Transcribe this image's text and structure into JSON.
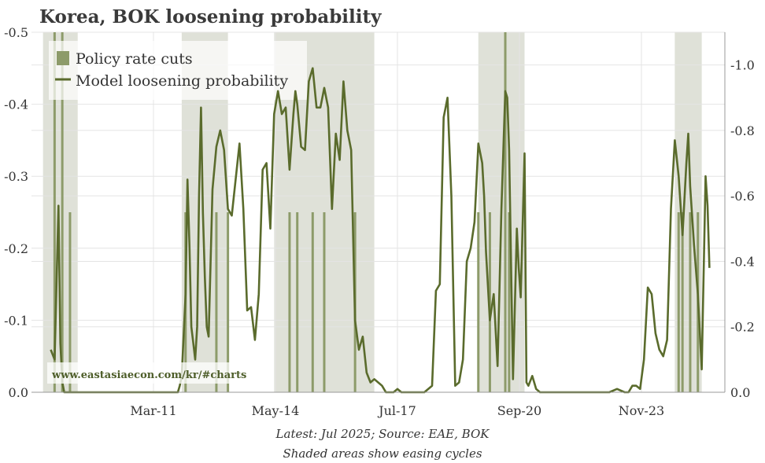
{
  "chart_data": {
    "type": "line",
    "title": "Korea, BOK loosening probability",
    "legend": {
      "placement": "top-left",
      "shaded_label": "Policy rate cuts",
      "line_label": "Model loosening probability"
    },
    "left_axis": {
      "ylim": [
        0.0,
        -0.5
      ],
      "ticks": [
        "0.0",
        "-0.1",
        "-0.2",
        "-0.3",
        "-0.4",
        "-0.5"
      ]
    },
    "right_axis": {
      "ylim": [
        0.0,
        -1.1
      ],
      "ticks": [
        "0.0",
        "-0.2",
        "-0.4",
        "-0.6",
        "-0.8",
        "-1.0"
      ]
    },
    "x_ticks": [
      "Mar-11",
      "May-14",
      "Jul-17",
      "Sep-20",
      "Nov-23"
    ],
    "xlim": [
      2008.0,
      2026.0
    ],
    "grid": true,
    "easing_cycles": [
      [
        2008.3,
        2009.2
      ],
      [
        2011.9,
        2013.1
      ],
      [
        2014.3,
        2016.9
      ],
      [
        2019.6,
        2020.8
      ],
      [
        2024.7,
        2025.4
      ]
    ],
    "policy_rate_cuts": [
      {
        "x": 2008.6,
        "value": -0.5
      },
      {
        "x": 2008.8,
        "value": -0.5
      },
      {
        "x": 2009.0,
        "value": -0.25
      },
      {
        "x": 2012.0,
        "value": -0.25
      },
      {
        "x": 2012.8,
        "value": -0.25
      },
      {
        "x": 2013.1,
        "value": -0.25
      },
      {
        "x": 2014.7,
        "value": -0.25
      },
      {
        "x": 2014.9,
        "value": -0.25
      },
      {
        "x": 2015.3,
        "value": -0.25
      },
      {
        "x": 2015.6,
        "value": -0.25
      },
      {
        "x": 2016.4,
        "value": -0.25
      },
      {
        "x": 2019.6,
        "value": -0.25
      },
      {
        "x": 2019.9,
        "value": -0.25
      },
      {
        "x": 2020.3,
        "value": -0.5
      },
      {
        "x": 2020.4,
        "value": -0.25
      },
      {
        "x": 2024.8,
        "value": -0.25
      },
      {
        "x": 2024.9,
        "value": -0.25
      },
      {
        "x": 2025.1,
        "value": -0.25
      },
      {
        "x": 2025.3,
        "value": -0.25
      }
    ],
    "series": [
      {
        "axis": "right",
        "x": [
          2008.5,
          2008.6,
          2008.7,
          2008.75,
          2008.8,
          2008.85,
          2008.9,
          2009.0,
          2009.1,
          2009.2,
          2009.3,
          2009.5,
          2010.0,
          2011.0,
          2011.5,
          2011.8,
          2011.85,
          2011.9,
          2012.0,
          2012.05,
          2012.1,
          2012.15,
          2012.2,
          2012.25,
          2012.3,
          2012.35,
          2012.4,
          2012.45,
          2012.5,
          2012.55,
          2012.6,
          2012.7,
          2012.8,
          2012.9,
          2013.0,
          2013.1,
          2013.2,
          2013.3,
          2013.4,
          2013.5,
          2013.6,
          2013.7,
          2013.8,
          2013.9,
          2014.0,
          2014.1,
          2014.2,
          2014.3,
          2014.4,
          2014.5,
          2014.6,
          2014.7,
          2014.8,
          2014.85,
          2014.9,
          2015.0,
          2015.1,
          2015.2,
          2015.3,
          2015.4,
          2015.5,
          2015.6,
          2015.7,
          2015.8,
          2015.9,
          2016.0,
          2016.1,
          2016.2,
          2016.3,
          2016.4,
          2016.5,
          2016.6,
          2016.7,
          2016.8,
          2016.9,
          2017.0,
          2017.1,
          2017.2,
          2017.3,
          2017.4,
          2017.5,
          2017.6,
          2017.8,
          2018.0,
          2018.2,
          2018.4,
          2018.5,
          2018.6,
          2018.7,
          2018.75,
          2018.8,
          2018.9,
          2019.0,
          2019.1,
          2019.2,
          2019.3,
          2019.4,
          2019.5,
          2019.6,
          2019.7,
          2019.75,
          2019.8,
          2019.9,
          2020.0,
          2020.1,
          2020.2,
          2020.3,
          2020.35,
          2020.4,
          2020.5,
          2020.6,
          2020.65,
          2020.7,
          2020.8,
          2020.85,
          2020.9,
          2021.0,
          2021.1,
          2021.2,
          2021.5,
          2022.0,
          2022.5,
          2023.0,
          2023.2,
          2023.4,
          2023.5,
          2023.6,
          2023.7,
          2023.8,
          2023.9,
          2024.0,
          2024.1,
          2024.2,
          2024.3,
          2024.4,
          2024.5,
          2024.6,
          2024.7,
          2024.8,
          2024.9,
          2025.0,
          2025.05,
          2025.1,
          2025.2,
          2025.3,
          2025.4,
          2025.5,
          2025.55,
          2025.6
        ],
        "y": [
          -0.13,
          -0.1,
          -0.57,
          -0.15,
          -0.03,
          0.0,
          0.0,
          0.0,
          0.0,
          0.0,
          0.0,
          0.0,
          0.0,
          0.0,
          0.0,
          0.0,
          -0.02,
          -0.05,
          -0.3,
          -0.65,
          -0.45,
          -0.2,
          -0.15,
          -0.1,
          -0.2,
          -0.6,
          -0.87,
          -0.55,
          -0.35,
          -0.2,
          -0.17,
          -0.62,
          -0.75,
          -0.8,
          -0.74,
          -0.56,
          -0.54,
          -0.65,
          -0.76,
          -0.56,
          -0.25,
          -0.26,
          -0.16,
          -0.3,
          -0.68,
          -0.7,
          -0.5,
          -0.85,
          -0.92,
          -0.85,
          -0.87,
          -0.68,
          -0.85,
          -0.92,
          -0.88,
          -0.75,
          -0.74,
          -0.95,
          -0.99,
          -0.87,
          -0.87,
          -0.93,
          -0.87,
          -0.56,
          -0.79,
          -0.71,
          -0.95,
          -0.8,
          -0.74,
          -0.22,
          -0.13,
          -0.17,
          -0.06,
          -0.03,
          -0.04,
          -0.03,
          -0.02,
          0.0,
          0.0,
          0.0,
          -0.01,
          0.0,
          0.0,
          0.0,
          0.0,
          -0.02,
          -0.31,
          -0.33,
          -0.84,
          -0.87,
          -0.9,
          -0.6,
          -0.02,
          -0.03,
          -0.1,
          -0.4,
          -0.44,
          -0.52,
          -0.76,
          -0.7,
          -0.6,
          -0.43,
          -0.22,
          -0.3,
          -0.08,
          -0.56,
          -0.92,
          -0.9,
          -0.74,
          -0.04,
          -0.5,
          -0.38,
          -0.29,
          -0.73,
          -0.03,
          -0.02,
          -0.05,
          -0.01,
          0.0,
          0.0,
          0.0,
          0.0,
          0.0,
          -0.01,
          0.0,
          0.0,
          -0.02,
          -0.02,
          -0.01,
          -0.1,
          -0.32,
          -0.3,
          -0.18,
          -0.13,
          -0.11,
          -0.16,
          -0.56,
          -0.77,
          -0.66,
          -0.48,
          -0.7,
          -0.79,
          -0.63,
          -0.45,
          -0.3,
          -0.07,
          -0.66,
          -0.57,
          -0.38
        ]
      }
    ],
    "watermark": "www.eastasiaecon.com/kr/#charts",
    "notes": [
      "Latest: Jul 2025; Source: EAE, BOK",
      "Shaded areas show easing cycles"
    ],
    "colors": {
      "line": "#5a6b2c",
      "shade": "#dfe1d8",
      "cut_bar": "#8d9b6a",
      "grid": "#e4e4e4"
    }
  }
}
